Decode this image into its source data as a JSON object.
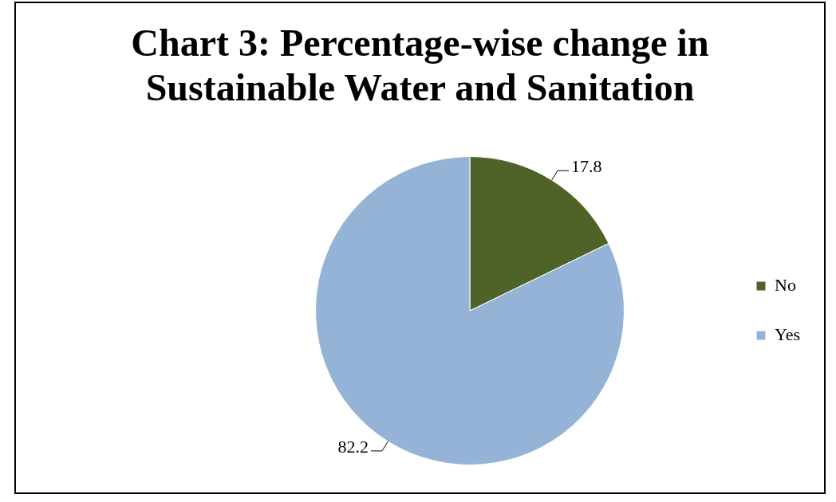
{
  "chart_data": {
    "type": "pie",
    "title": "Chart 3: Percentage-wise change in Sustainable Water and Sanitation",
    "categories": [
      "No",
      "Yes"
    ],
    "values": [
      17.8,
      82.2
    ],
    "colors": [
      "#4f6228",
      "#95b3d7"
    ],
    "data_labels": true,
    "legend": "right"
  }
}
